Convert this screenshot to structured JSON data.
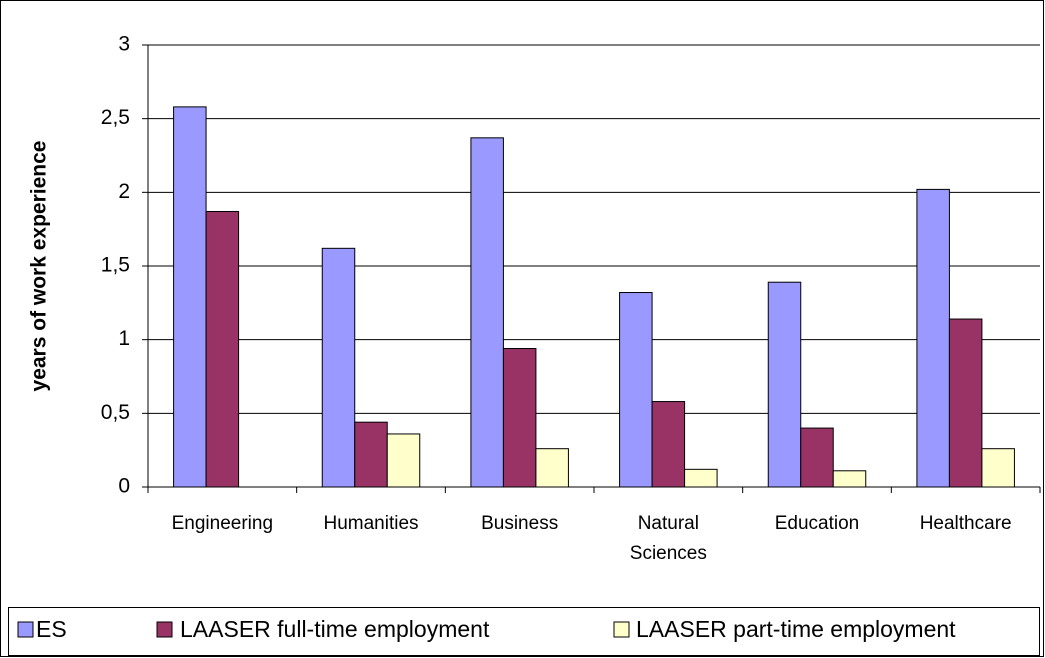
{
  "chart_data": {
    "type": "bar",
    "y_label": "years of work experience",
    "categories": [
      "Engineering",
      "Humanities",
      "Business",
      "Natural Sciences",
      "Education",
      "Healthcare"
    ],
    "series": [
      {
        "name": "ES",
        "color": "#9999ff",
        "values": [
          2.58,
          1.62,
          2.37,
          1.32,
          1.39,
          2.02
        ]
      },
      {
        "name": "LAASER full-time employment",
        "color": "#993366",
        "values": [
          1.87,
          0.44,
          0.94,
          0.58,
          0.4,
          1.14
        ]
      },
      {
        "name": "LAASER part-time employment",
        "color": "#ffffcc",
        "values": [
          null,
          0.36,
          0.26,
          0.12,
          0.11,
          0.26
        ]
      }
    ],
    "ylim": [
      0,
      3
    ],
    "yticks": [
      0,
      {
        "value": 0.5,
        "label": "0,5"
      },
      1,
      {
        "value": 1.5,
        "label": "1,5"
      },
      2,
      {
        "value": 2.5,
        "label": "2,5"
      },
      3
    ],
    "grid": true,
    "legend": "bottom"
  }
}
